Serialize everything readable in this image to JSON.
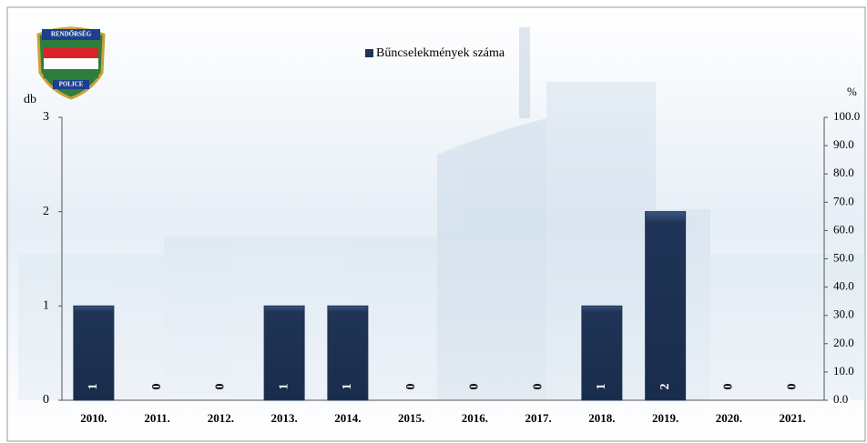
{
  "chart_data": {
    "type": "bar",
    "logo": [
      "RENDŐRSÉG",
      "POLICE"
    ],
    "legend": "Bűncselekmények száma",
    "ylabel": "db",
    "y2label": "%",
    "categories": [
      "2010.",
      "2011.",
      "2012.",
      "2013.",
      "2014.",
      "2015.",
      "2016.",
      "2017.",
      "2018.",
      "2019.",
      "2020.",
      "2021."
    ],
    "values": [
      1,
      0,
      0,
      1,
      1,
      0,
      0,
      0,
      1,
      2,
      0,
      0
    ],
    "color": "#1f3457",
    "ylim": [
      0,
      3
    ],
    "yticks": [
      0,
      1,
      2,
      3
    ],
    "y2lim": [
      0,
      100
    ],
    "y2ticks": [
      {
        "value": 0,
        "label": "0.0"
      },
      {
        "value": 10,
        "label": "10.0"
      },
      {
        "value": 20,
        "label": "20.0"
      },
      {
        "value": 30,
        "label": "30.0"
      },
      {
        "value": 40,
        "label": "40.0"
      },
      {
        "value": 50,
        "label": "50.0"
      },
      {
        "value": 60,
        "label": "60.0"
      },
      {
        "value": 70,
        "label": "70.0"
      },
      {
        "value": 80,
        "label": "80.0"
      },
      {
        "value": 90,
        "label": "90.0"
      },
      {
        "value": 100,
        "label": "100.0"
      }
    ]
  }
}
